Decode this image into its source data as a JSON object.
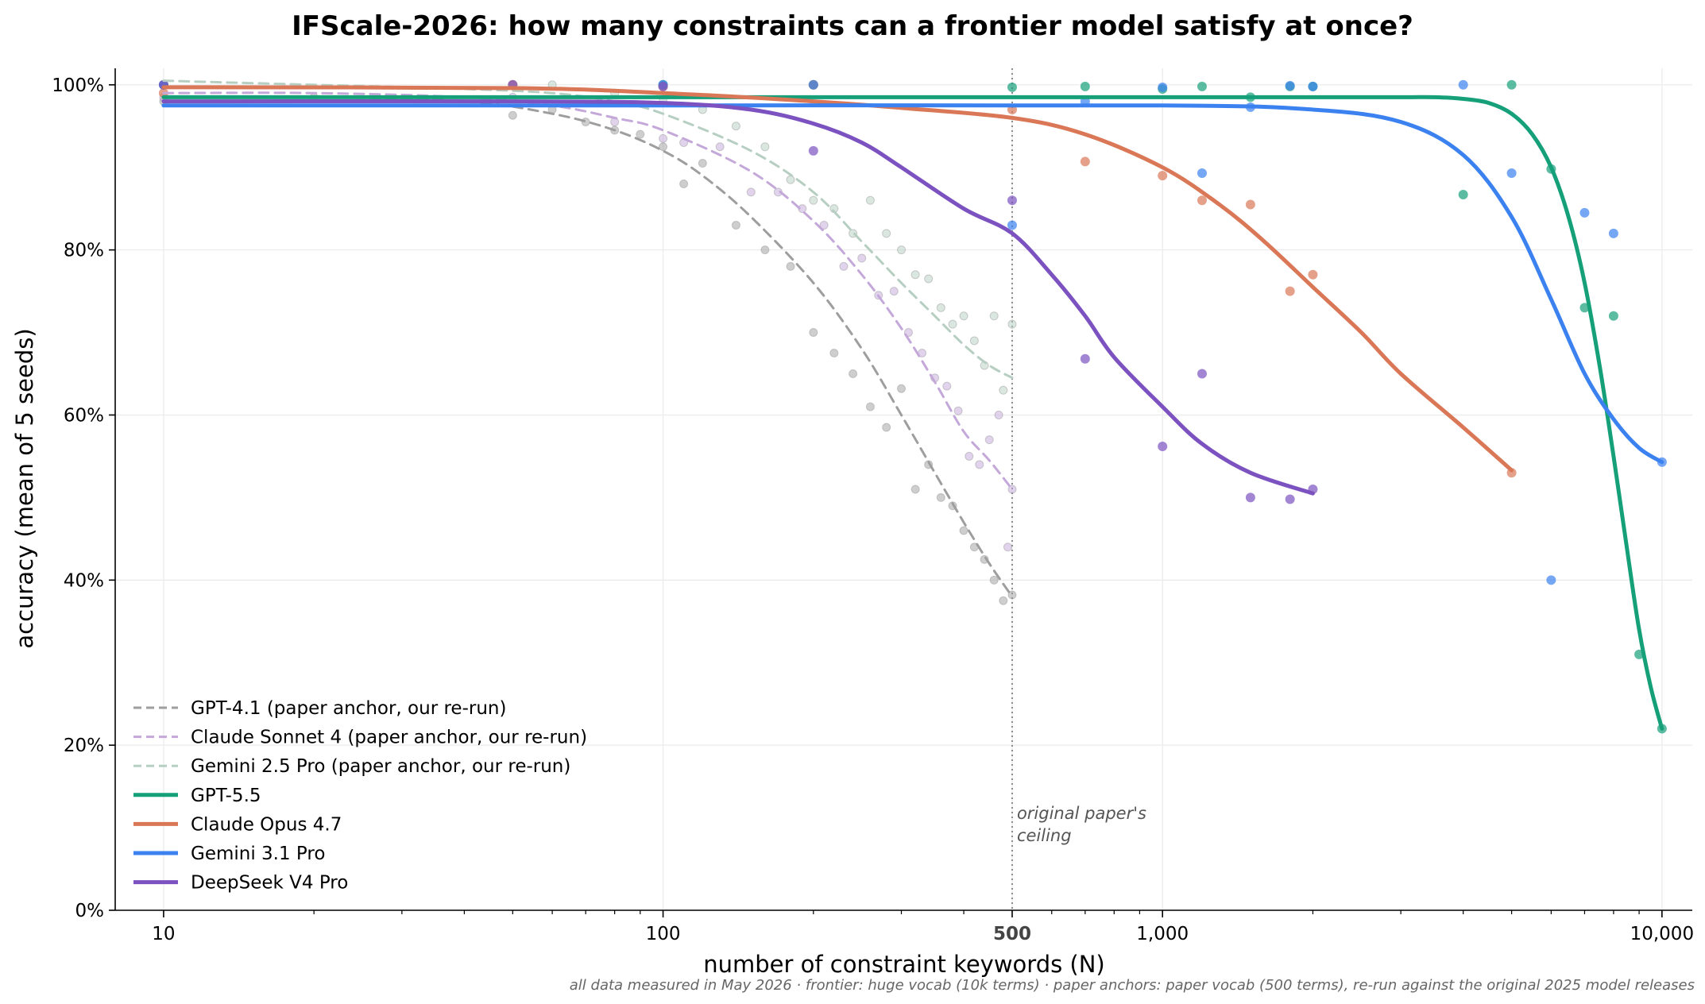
{
  "chart_data": {
    "type": "line",
    "title": "IFScale-2026: how many constraints can a frontier model satisfy at once?",
    "xlabel": "number of constraint keywords (N)",
    "ylabel": "accuracy (mean of 5 seeds)",
    "x_scale": "log",
    "xlim": [
      8,
      11500
    ],
    "ylim": [
      0,
      1.02
    ],
    "x_ticks": [
      {
        "value": 10,
        "label": "10"
      },
      {
        "value": 100,
        "label": "100"
      },
      {
        "value": 500,
        "label": "500",
        "bold": true
      },
      {
        "value": 1000,
        "label": "1,000"
      },
      {
        "value": 10000,
        "label": "10,000"
      }
    ],
    "y_ticks": [
      {
        "value": 0,
        "label": "0%"
      },
      {
        "value": 0.2,
        "label": "20%"
      },
      {
        "value": 0.4,
        "label": "40%"
      },
      {
        "value": 0.6,
        "label": "60%"
      },
      {
        "value": 0.8,
        "label": "80%"
      },
      {
        "value": 1.0,
        "label": "100%"
      }
    ],
    "grid": true,
    "legend_position": "lower-left",
    "reference_line": {
      "x": 500,
      "annotation_line1": "original paper's",
      "annotation_line2": "ceiling"
    },
    "footnote": "all data measured in May 2026 · frontier: huge vocab (10k terms) · paper anchors: paper vocab (500 terms), re-run against the original 2025 model releases",
    "series": [
      {
        "name": "GPT-4.1 (paper anchor, our re-run)",
        "color": "#9e9e9e",
        "style": "dashed",
        "curve_x": [
          10,
          20,
          40,
          60,
          80,
          100,
          120,
          150,
          200,
          250,
          300,
          350,
          400,
          450,
          500
        ],
        "curve_y": [
          0.985,
          0.985,
          0.98,
          0.965,
          0.945,
          0.92,
          0.89,
          0.84,
          0.76,
          0.68,
          0.6,
          0.53,
          0.47,
          0.42,
          0.38
        ],
        "points_x": [
          10,
          20,
          50,
          60,
          70,
          80,
          90,
          100,
          110,
          120,
          140,
          160,
          180,
          200,
          220,
          240,
          260,
          280,
          300,
          320,
          340,
          360,
          380,
          400,
          420,
          440,
          460,
          480,
          500
        ],
        "points_y": [
          0.98,
          0.985,
          0.963,
          0.97,
          0.955,
          0.945,
          0.94,
          0.925,
          0.88,
          0.905,
          0.83,
          0.8,
          0.78,
          0.7,
          0.675,
          0.65,
          0.61,
          0.585,
          0.632,
          0.51,
          0.54,
          0.5,
          0.49,
          0.46,
          0.44,
          0.425,
          0.4,
          0.375,
          0.382
        ]
      },
      {
        "name": "Claude Sonnet 4 (paper anchor, our re-run)",
        "color": "#c3a8d9",
        "style": "dashed",
        "curve_x": [
          10,
          20,
          40,
          60,
          80,
          100,
          150,
          200,
          250,
          300,
          350,
          400,
          450,
          500
        ],
        "curve_y": [
          0.99,
          0.99,
          0.985,
          0.975,
          0.96,
          0.945,
          0.895,
          0.835,
          0.77,
          0.705,
          0.64,
          0.58,
          0.545,
          0.51
        ],
        "points_x": [
          10,
          50,
          80,
          100,
          110,
          130,
          150,
          170,
          190,
          210,
          230,
          250,
          270,
          290,
          310,
          330,
          350,
          370,
          390,
          410,
          430,
          450,
          470,
          490,
          500
        ],
        "points_y": [
          0.985,
          0.985,
          0.955,
          0.935,
          0.93,
          0.925,
          0.87,
          0.87,
          0.85,
          0.83,
          0.78,
          0.79,
          0.745,
          0.75,
          0.7,
          0.675,
          0.645,
          0.635,
          0.605,
          0.55,
          0.54,
          0.57,
          0.6,
          0.44,
          0.51
        ]
      },
      {
        "name": "Gemini 2.5 Pro (paper anchor, our re-run)",
        "color": "#b6cfc2",
        "style": "dashed",
        "curve_x": [
          10,
          20,
          40,
          60,
          80,
          100,
          150,
          200,
          250,
          300,
          350,
          400,
          450,
          500
        ],
        "curve_y": [
          1.005,
          1.0,
          0.995,
          0.99,
          0.98,
          0.965,
          0.92,
          0.87,
          0.81,
          0.76,
          0.72,
          0.685,
          0.66,
          0.645
        ],
        "points_x": [
          10,
          50,
          60,
          80,
          100,
          120,
          140,
          160,
          180,
          200,
          220,
          240,
          260,
          280,
          300,
          320,
          340,
          360,
          380,
          400,
          420,
          440,
          460,
          480,
          500
        ],
        "points_y": [
          1.0,
          1.0,
          1.0,
          0.99,
          0.98,
          0.97,
          0.95,
          0.925,
          0.885,
          0.86,
          0.85,
          0.82,
          0.86,
          0.82,
          0.8,
          0.77,
          0.765,
          0.73,
          0.71,
          0.72,
          0.69,
          0.66,
          0.72,
          0.63,
          0.71
        ]
      },
      {
        "name": "GPT-5.5",
        "color": "#16a07a",
        "style": "solid",
        "curve_x": [
          10,
          100,
          1000,
          2000,
          3000,
          3500,
          4000,
          4500,
          5000,
          5500,
          6000,
          6500,
          7000,
          7500,
          8000,
          8500,
          9000,
          9500,
          10000
        ],
        "curve_y": [
          0.985,
          0.985,
          0.985,
          0.985,
          0.985,
          0.985,
          0.983,
          0.978,
          0.965,
          0.94,
          0.9,
          0.84,
          0.76,
          0.66,
          0.55,
          0.44,
          0.34,
          0.27,
          0.22
        ],
        "points_x": [
          10,
          100,
          200,
          500,
          700,
          1000,
          1200,
          1500,
          1800,
          2000,
          4000,
          5000,
          6000,
          7000,
          8000,
          9000,
          10000
        ],
        "points_y": [
          1.0,
          1.0,
          1.0,
          0.997,
          0.998,
          0.995,
          0.998,
          0.985,
          0.998,
          0.998,
          0.867,
          1.0,
          0.898,
          0.73,
          0.72,
          0.31,
          0.22
        ]
      },
      {
        "name": "Claude Opus 4.7",
        "color": "#d97757",
        "style": "solid",
        "curve_x": [
          10,
          50,
          100,
          200,
          300,
          500,
          700,
          1000,
          1300,
          1600,
          2000,
          2500,
          3000,
          4000,
          5000
        ],
        "curve_y": [
          0.997,
          0.996,
          0.99,
          0.98,
          0.972,
          0.96,
          0.94,
          0.9,
          0.855,
          0.81,
          0.755,
          0.7,
          0.65,
          0.585,
          0.533
        ],
        "points_x": [
          10,
          50,
          100,
          200,
          500,
          700,
          1000,
          1200,
          1500,
          1800,
          2000,
          5000
        ],
        "points_y": [
          0.99,
          1.0,
          0.998,
          1.0,
          0.97,
          0.907,
          0.89,
          0.86,
          0.855,
          0.75,
          0.77,
          0.53
        ]
      },
      {
        "name": "Gemini 3.1 Pro",
        "color": "#3b82f0",
        "style": "solid",
        "curve_x": [
          10,
          100,
          1000,
          2000,
          3000,
          4000,
          5000,
          6000,
          7000,
          8000,
          9000,
          10000
        ],
        "curve_y": [
          0.975,
          0.975,
          0.975,
          0.97,
          0.955,
          0.915,
          0.84,
          0.74,
          0.65,
          0.595,
          0.56,
          0.543
        ],
        "points_x": [
          10,
          100,
          200,
          500,
          700,
          1000,
          1200,
          1500,
          1800,
          2000,
          4000,
          5000,
          6000,
          7000,
          8000,
          10000
        ],
        "points_y": [
          1.0,
          1.0,
          1.0,
          0.83,
          0.98,
          0.997,
          0.893,
          0.973,
          0.999,
          0.998,
          1.0,
          0.893,
          0.4,
          0.845,
          0.82,
          0.543
        ]
      },
      {
        "name": "DeepSeek V4 Pro",
        "color": "#7b52c0",
        "style": "solid",
        "curve_x": [
          10,
          50,
          100,
          150,
          200,
          250,
          300,
          400,
          500,
          600,
          700,
          800,
          1000,
          1200,
          1500,
          2000
        ],
        "curve_y": [
          0.98,
          0.98,
          0.978,
          0.97,
          0.953,
          0.93,
          0.9,
          0.85,
          0.82,
          0.77,
          0.72,
          0.67,
          0.61,
          0.565,
          0.53,
          0.505
        ],
        "points_x": [
          10,
          50,
          100,
          200,
          500,
          700,
          1000,
          1200,
          1500,
          1800,
          2000
        ],
        "points_y": [
          1.0,
          1.0,
          0.998,
          0.92,
          0.86,
          0.668,
          0.562,
          0.65,
          0.5,
          0.498,
          0.51
        ]
      }
    ]
  }
}
